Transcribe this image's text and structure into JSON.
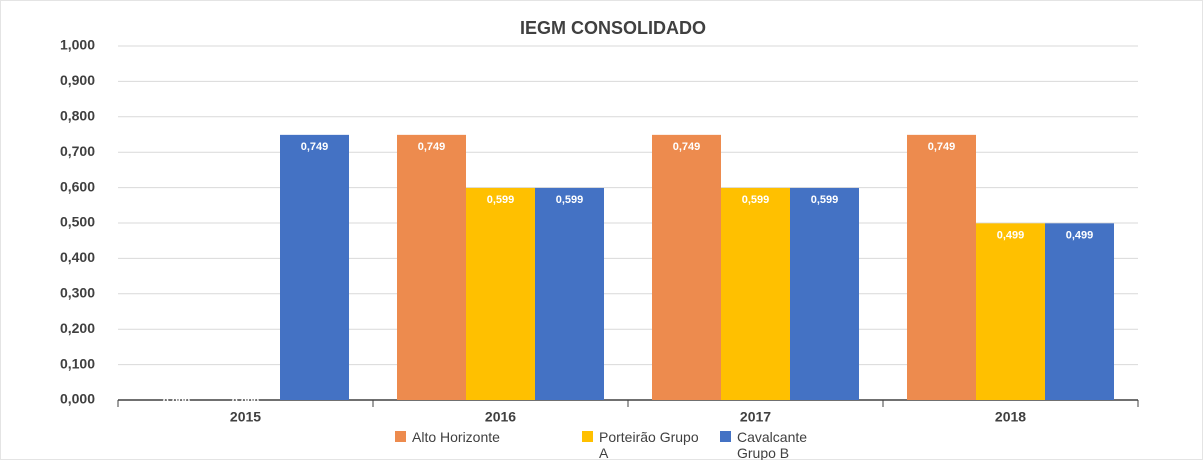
{
  "chart_data": {
    "type": "bar",
    "title": "IEGM CONSOLIDADO",
    "categories": [
      "2015",
      "2016",
      "2017",
      "2018"
    ],
    "series": [
      {
        "name": "Alto Horizonte",
        "color": "#ed8b4e",
        "values": [
          0,
          0.749,
          0.749,
          0.749
        ],
        "value_labels": [
          "0,000",
          "0,749",
          "0,749",
          "0,749"
        ]
      },
      {
        "name": "Porteirão Grupo A",
        "color": "#ffc000",
        "values": [
          0,
          0.599,
          0.599,
          0.499
        ],
        "value_labels": [
          "0,000",
          "0,599",
          "0,599",
          "0,499"
        ]
      },
      {
        "name": "Cavalcante Grupo B",
        "color": "#4472c4",
        "values": [
          0.749,
          0.599,
          0.599,
          0.499
        ],
        "value_labels": [
          "0,749",
          "0,599",
          "0,599",
          "0,499"
        ]
      }
    ],
    "ylim": [
      0,
      1
    ],
    "yticks": [
      {
        "value": 0,
        "label": "0,000"
      },
      {
        "value": 0.1,
        "label": "0,100"
      },
      {
        "value": 0.2,
        "label": "0,200"
      },
      {
        "value": 0.3,
        "label": "0,300"
      },
      {
        "value": 0.4,
        "label": "0,400"
      },
      {
        "value": 0.5,
        "label": "0,500"
      },
      {
        "value": 0.6,
        "label": "0,600"
      },
      {
        "value": 0.7,
        "label": "0,700"
      },
      {
        "value": 0.8,
        "label": "0,800"
      },
      {
        "value": 0.9,
        "label": "0,900"
      },
      {
        "value": 1,
        "label": "1,000"
      }
    ],
    "grid": true,
    "legend": "bottom"
  }
}
